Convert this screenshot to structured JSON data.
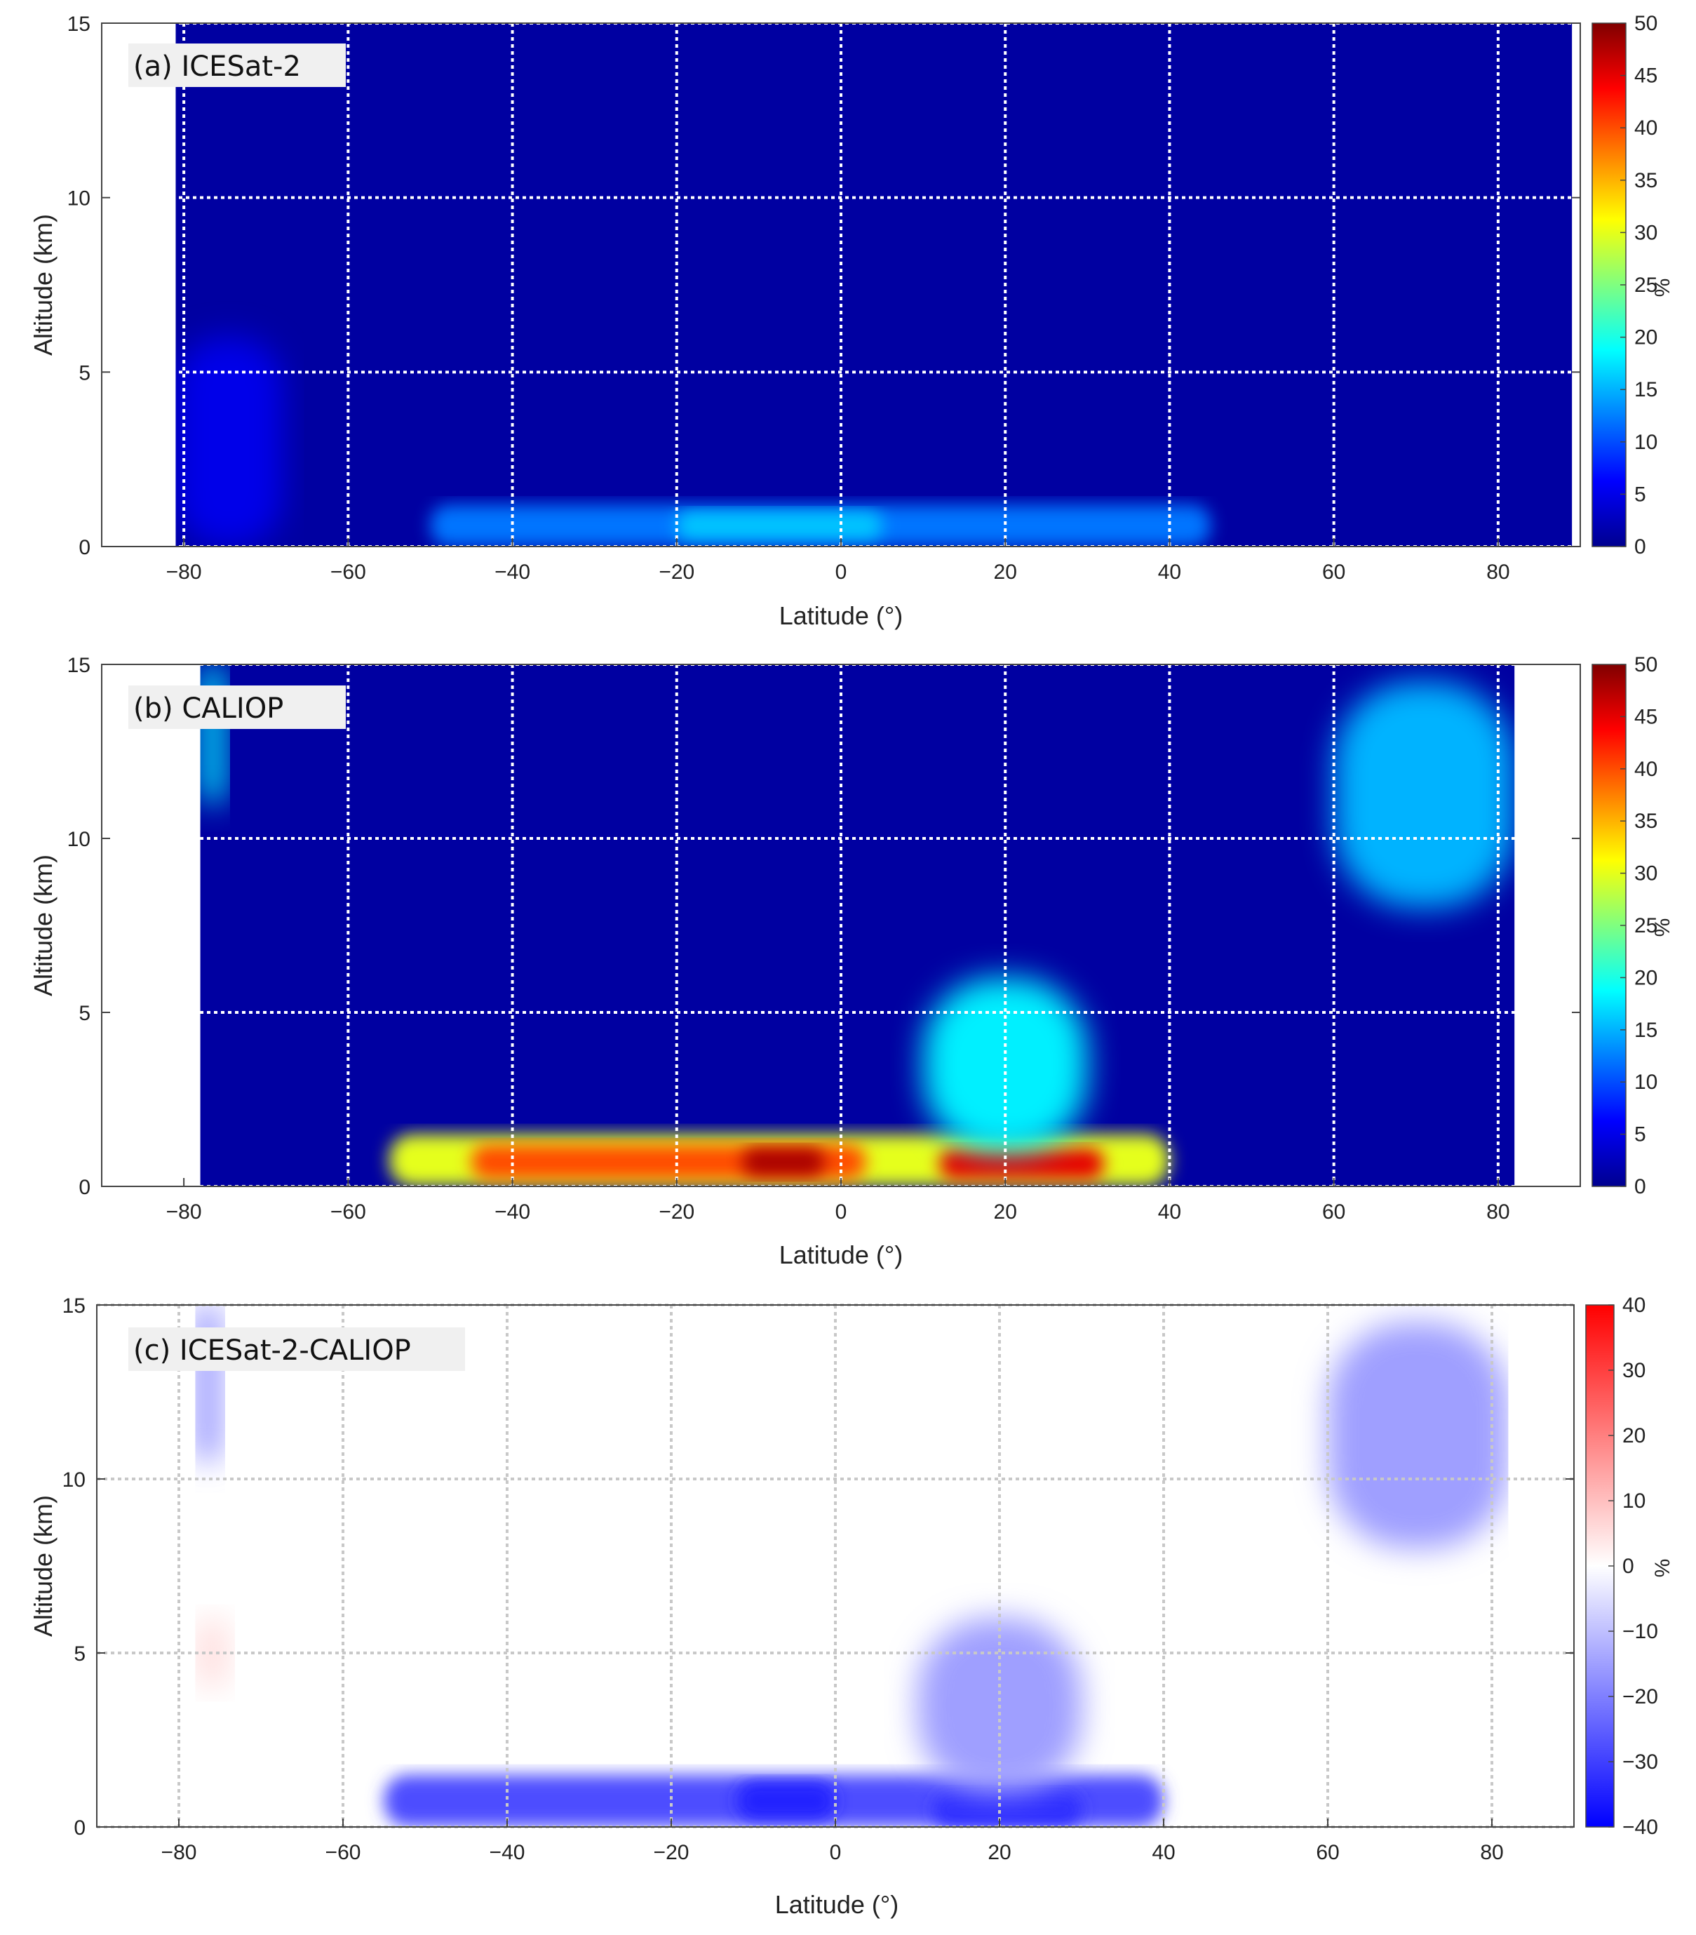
{
  "chart_data": [
    {
      "type": "heatmap",
      "panel_label": "(a) ICESat-2",
      "xlabel": "Latitude (°)",
      "ylabel": "Altitude (km)",
      "xlim": [
        -90,
        90
      ],
      "ylim": [
        0,
        15
      ],
      "x_ticks": [
        -80,
        -60,
        -40,
        -20,
        0,
        20,
        40,
        60,
        80
      ],
      "y_ticks": [
        0,
        5,
        10,
        15
      ],
      "grid": true,
      "data_extent_lat": [
        -81,
        89
      ],
      "colormap": "jet",
      "colorbar": {
        "label": "%",
        "min": 0,
        "max": 50,
        "ticks": [
          0,
          5,
          10,
          15,
          20,
          25,
          30,
          35,
          40,
          45,
          50
        ]
      },
      "features": [
        {
          "lat_min": -50,
          "lat_max": 45,
          "alt_min": 0,
          "alt_max": 1.2,
          "value": 12
        },
        {
          "lat_min": -20,
          "lat_max": 5,
          "alt_min": 0.2,
          "alt_max": 1.0,
          "value": 16
        },
        {
          "lat_min": -81,
          "lat_max": -68,
          "alt_min": 0,
          "alt_max": 6,
          "value": 5
        }
      ]
    },
    {
      "type": "heatmap",
      "panel_label": "(b) CALIOP",
      "xlabel": "Latitude (°)",
      "ylabel": "Altitude (km)",
      "xlim": [
        -90,
        90
      ],
      "ylim": [
        0,
        15
      ],
      "x_ticks": [
        -80,
        -60,
        -40,
        -20,
        0,
        20,
        40,
        60,
        80
      ],
      "y_ticks": [
        0,
        5,
        10,
        15
      ],
      "grid": true,
      "data_extent_lat": [
        -78,
        82
      ],
      "colormap": "jet",
      "colorbar": {
        "label": "%",
        "min": 0,
        "max": 50,
        "ticks": [
          0,
          5,
          10,
          15,
          20,
          25,
          30,
          35,
          40,
          45,
          50
        ]
      },
      "features": [
        {
          "lat_min": -55,
          "lat_max": 40,
          "alt_min": 0,
          "alt_max": 1.5,
          "value": 30
        },
        {
          "lat_min": -45,
          "lat_max": 3,
          "alt_min": 0.2,
          "alt_max": 1.2,
          "value": 40
        },
        {
          "lat_min": -12,
          "lat_max": -2,
          "alt_min": 0.3,
          "alt_max": 1.1,
          "value": 48
        },
        {
          "lat_min": 12,
          "lat_max": 32,
          "alt_min": 0.2,
          "alt_max": 1.1,
          "value": 45
        },
        {
          "lat_min": 10,
          "lat_max": 30,
          "alt_min": 1,
          "alt_max": 6,
          "value": 18
        },
        {
          "lat_min": 60,
          "lat_max": 82,
          "alt_min": 8,
          "alt_max": 14.5,
          "value": 15
        },
        {
          "lat_min": -78,
          "lat_max": -75,
          "alt_min": 11,
          "alt_max": 15,
          "value": 18
        }
      ]
    },
    {
      "type": "heatmap",
      "panel_label": "(c) ICESat-2-CALIOP",
      "xlabel": "Latitude (°)",
      "ylabel": "Altitude (km)",
      "xlim": [
        -90,
        90
      ],
      "ylim": [
        0,
        15
      ],
      "x_ticks": [
        -80,
        -60,
        -40,
        -20,
        0,
        20,
        40,
        60,
        80
      ],
      "y_ticks": [
        0,
        5,
        10,
        15
      ],
      "grid": true,
      "data_extent_lat": [
        -78,
        82
      ],
      "colormap": "blue-white-red",
      "colorbar": {
        "label": "%",
        "min": -40,
        "max": 40,
        "ticks": [
          -40,
          -30,
          -20,
          -10,
          0,
          10,
          20,
          30,
          40
        ]
      },
      "features": [
        {
          "lat_min": -55,
          "lat_max": 40,
          "alt_min": 0,
          "alt_max": 1.5,
          "value": -28
        },
        {
          "lat_min": -12,
          "lat_max": 0,
          "alt_min": 0.2,
          "alt_max": 1.3,
          "value": -35
        },
        {
          "lat_min": 12,
          "lat_max": 30,
          "alt_min": 0,
          "alt_max": 1.0,
          "value": -33
        },
        {
          "lat_min": 10,
          "lat_max": 30,
          "alt_min": 1,
          "alt_max": 6,
          "value": -15
        },
        {
          "lat_min": 60,
          "lat_max": 82,
          "alt_min": 8,
          "alt_max": 14.5,
          "value": -15
        },
        {
          "lat_min": -78,
          "lat_max": -75,
          "alt_min": 10.5,
          "alt_max": 15,
          "value": -18
        },
        {
          "lat_min": -78,
          "lat_max": -74,
          "alt_min": 4,
          "alt_max": 6,
          "value": 5
        }
      ]
    }
  ]
}
